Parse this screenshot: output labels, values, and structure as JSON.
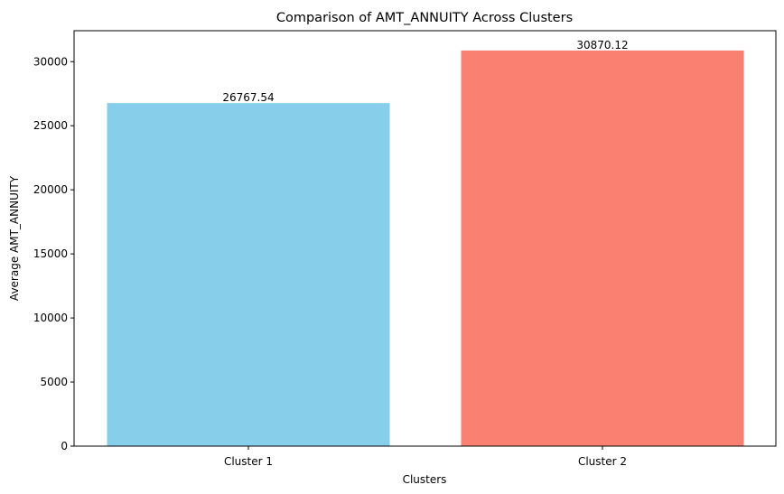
{
  "chart_data": {
    "type": "bar",
    "title": "Comparison of AMT_ANNUITY Across Clusters",
    "xlabel": "Clusters",
    "ylabel": "Average AMT_ANNUITY",
    "categories": [
      "Cluster 1",
      "Cluster 2"
    ],
    "values": [
      26767.54,
      30870.12
    ],
    "data_labels": [
      "26767.54",
      "30870.12"
    ],
    "colors": [
      "#87ceeb",
      "#fa8072"
    ],
    "ylim": [
      0,
      32413.6
    ],
    "yticks": [
      0,
      5000,
      10000,
      15000,
      20000,
      25000,
      30000
    ],
    "grid": false,
    "legend": "none"
  }
}
